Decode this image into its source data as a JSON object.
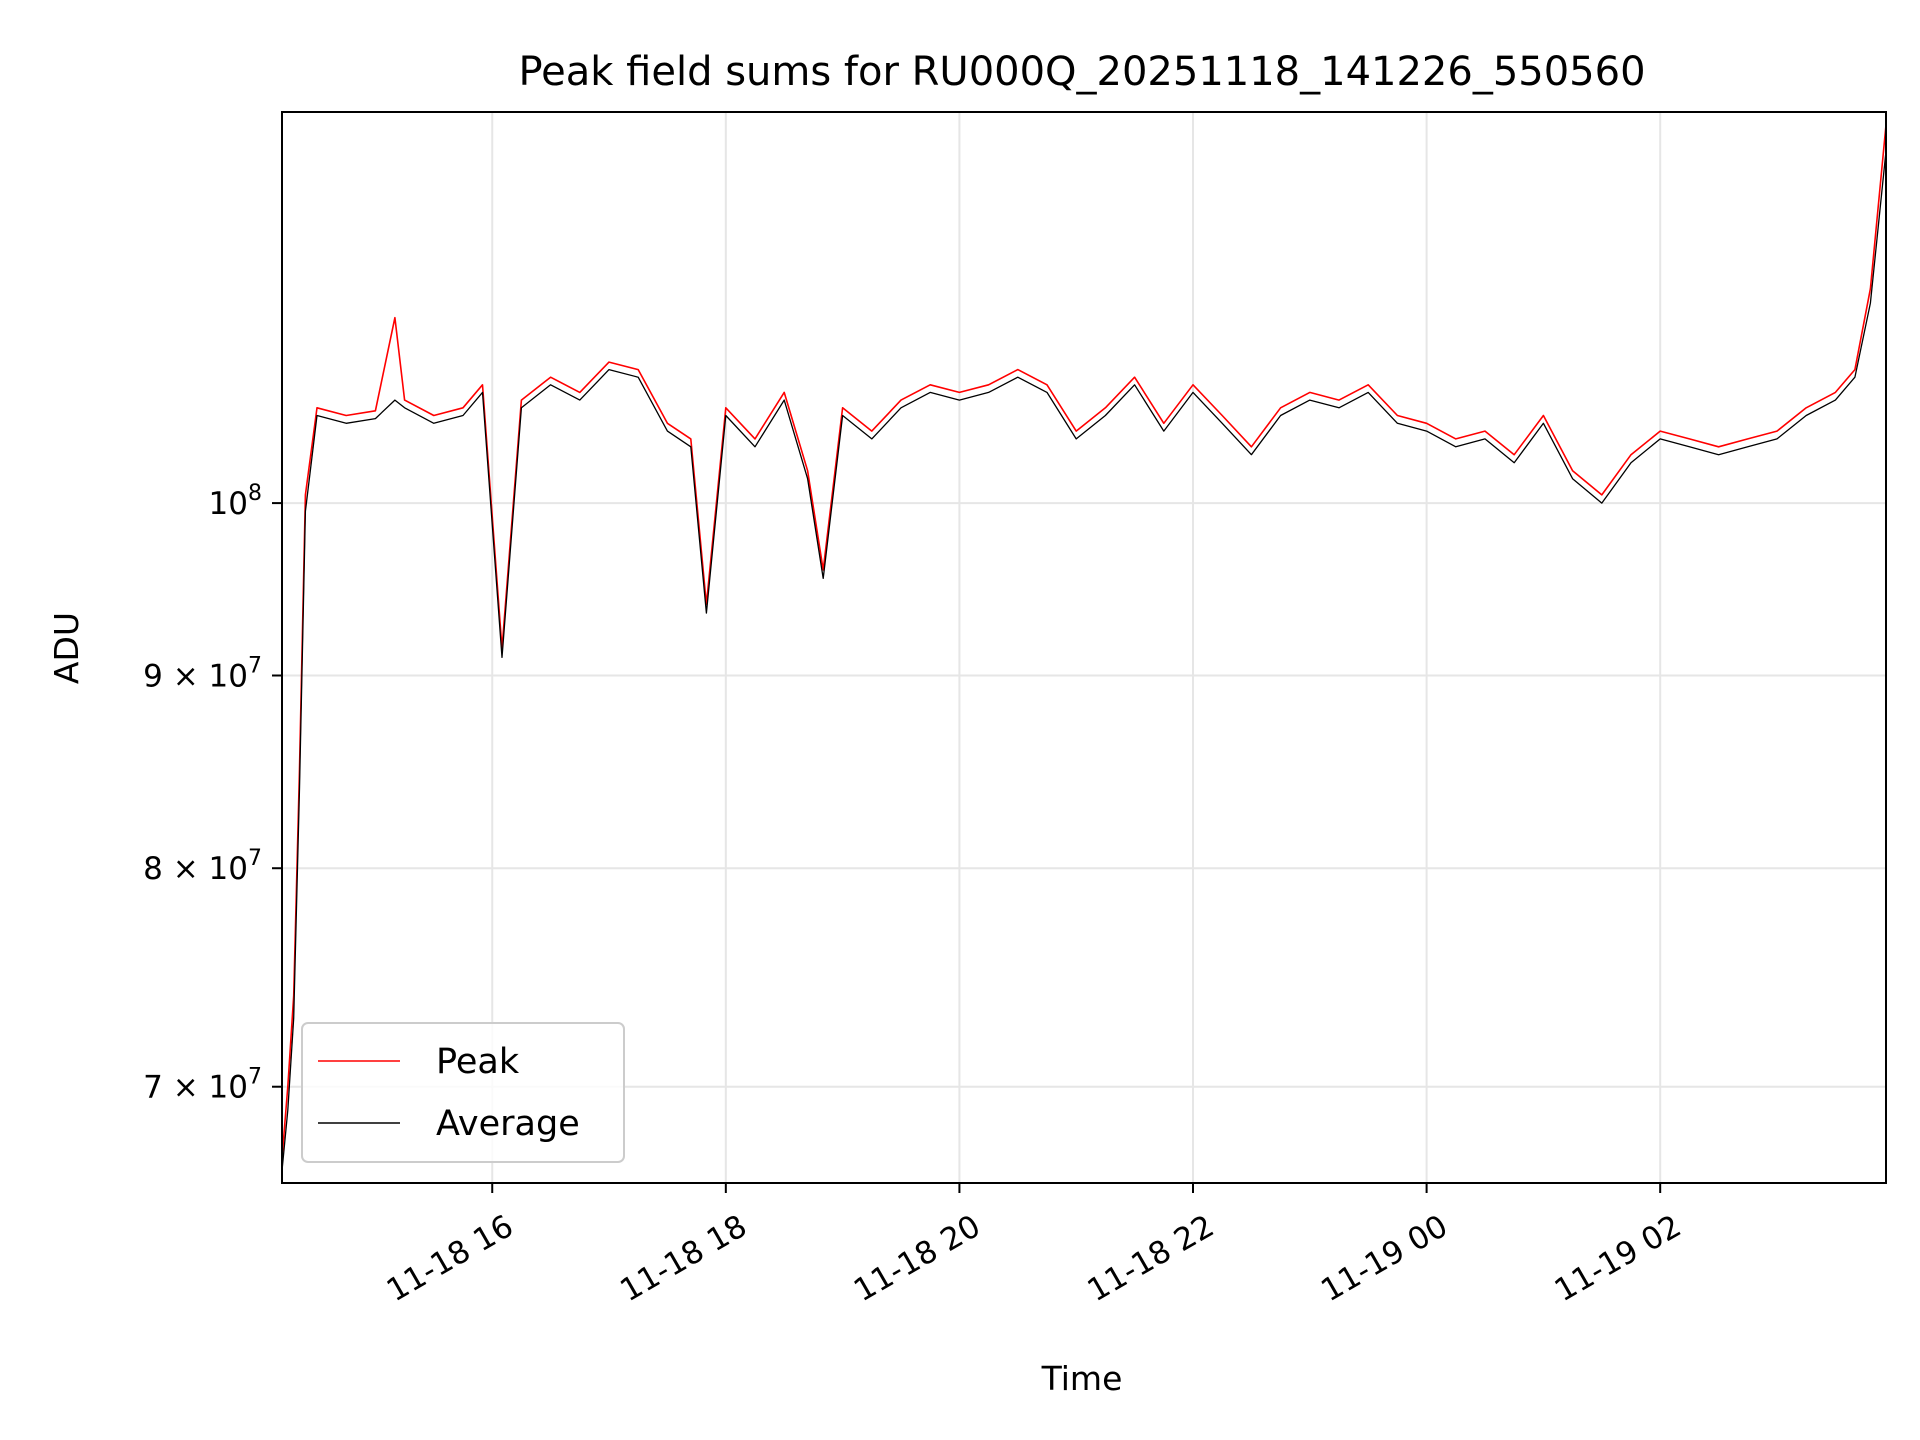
{
  "chart_data": {
    "type": "line",
    "title": "Peak field sums for RU000Q_20251118_141226_550560",
    "xlabel": "Time",
    "ylabel": "ADU",
    "y_scale": "log",
    "grid": true,
    "legend_position": "lower-left",
    "xlim": [
      "2025-11-18 14:12",
      "2025-11-19 03:56"
    ],
    "ylim": [
      66000000,
      127000000
    ],
    "x_ticks": [
      {
        "value": "2025-11-18 16:00",
        "label": "11-18 16"
      },
      {
        "value": "2025-11-18 18:00",
        "label": "11-18 18"
      },
      {
        "value": "2025-11-18 20:00",
        "label": "11-18 20"
      },
      {
        "value": "2025-11-18 22:00",
        "label": "11-18 22"
      },
      {
        "value": "2025-11-19 00:00",
        "label": "11-19 00"
      },
      {
        "value": "2025-11-19 02:00",
        "label": "11-19 02"
      }
    ],
    "y_ticks": [
      {
        "value": 100000000,
        "label": "10",
        "exp": "8"
      },
      {
        "value": 90000000,
        "label": "9 × 10",
        "exp": "7"
      },
      {
        "value": 80000000,
        "label": "8 × 10",
        "exp": "7"
      },
      {
        "value": 70000000,
        "label": "7 × 10",
        "exp": "7"
      }
    ],
    "series": [
      {
        "name": "Peak",
        "color": "#ff0000",
        "x": [
          "2025-11-18 14:12",
          "2025-11-18 14:15",
          "2025-11-18 14:18",
          "2025-11-18 14:21",
          "2025-11-18 14:24",
          "2025-11-18 14:30",
          "2025-11-18 14:45",
          "2025-11-18 15:00",
          "2025-11-18 15:10",
          "2025-11-18 15:15",
          "2025-11-18 15:30",
          "2025-11-18 15:45",
          "2025-11-18 15:55",
          "2025-11-18 16:05",
          "2025-11-18 16:15",
          "2025-11-18 16:30",
          "2025-11-18 16:45",
          "2025-11-18 17:00",
          "2025-11-18 17:15",
          "2025-11-18 17:30",
          "2025-11-18 17:42",
          "2025-11-18 17:50",
          "2025-11-18 18:00",
          "2025-11-18 18:15",
          "2025-11-18 18:30",
          "2025-11-18 18:42",
          "2025-11-18 18:50",
          "2025-11-18 19:00",
          "2025-11-18 19:15",
          "2025-11-18 19:30",
          "2025-11-18 19:45",
          "2025-11-18 20:00",
          "2025-11-18 20:15",
          "2025-11-18 20:30",
          "2025-11-18 20:45",
          "2025-11-18 21:00",
          "2025-11-18 21:15",
          "2025-11-18 21:30",
          "2025-11-18 21:45",
          "2025-11-18 22:00",
          "2025-11-18 22:15",
          "2025-11-18 22:30",
          "2025-11-18 22:45",
          "2025-11-18 23:00",
          "2025-11-18 23:15",
          "2025-11-18 23:30",
          "2025-11-18 23:45",
          "2025-11-19 00:00",
          "2025-11-19 00:15",
          "2025-11-19 00:30",
          "2025-11-19 00:45",
          "2025-11-19 01:00",
          "2025-11-19 01:15",
          "2025-11-19 01:30",
          "2025-11-19 01:45",
          "2025-11-19 02:00",
          "2025-11-19 02:15",
          "2025-11-19 02:30",
          "2025-11-19 02:45",
          "2025-11-19 03:00",
          "2025-11-19 03:15",
          "2025-11-19 03:30",
          "2025-11-19 03:40",
          "2025-11-19 03:48",
          "2025-11-19 03:56"
        ],
        "y": [
          67000000,
          70000000,
          74000000,
          85000000,
          100500000,
          106000000,
          105500000,
          105800000,
          112000000,
          106500000,
          105500000,
          106000000,
          107500000,
          91500000,
          106500000,
          108000000,
          107000000,
          109000000,
          108500000,
          105000000,
          104000000,
          94000000,
          106000000,
          104000000,
          107000000,
          102000000,
          96000000,
          106000000,
          104500000,
          106500000,
          107500000,
          107000000,
          107500000,
          108500000,
          107500000,
          104500000,
          106000000,
          108000000,
          105000000,
          107500000,
          105500000,
          103500000,
          106000000,
          107000000,
          106500000,
          107500000,
          105500000,
          105000000,
          104000000,
          104500000,
          103000000,
          105500000,
          102000000,
          100500000,
          103000000,
          104500000,
          104000000,
          103500000,
          104000000,
          104500000,
          106000000,
          107000000,
          108500000,
          114000000,
          126000000
        ]
      },
      {
        "name": "Average",
        "color": "#000000",
        "x": [
          "2025-11-18 14:12",
          "2025-11-18 14:15",
          "2025-11-18 14:18",
          "2025-11-18 14:21",
          "2025-11-18 14:24",
          "2025-11-18 14:30",
          "2025-11-18 14:45",
          "2025-11-18 15:00",
          "2025-11-18 15:10",
          "2025-11-18 15:15",
          "2025-11-18 15:30",
          "2025-11-18 15:45",
          "2025-11-18 15:55",
          "2025-11-18 16:05",
          "2025-11-18 16:15",
          "2025-11-18 16:30",
          "2025-11-18 16:45",
          "2025-11-18 17:00",
          "2025-11-18 17:15",
          "2025-11-18 17:30",
          "2025-11-18 17:42",
          "2025-11-18 17:50",
          "2025-11-18 18:00",
          "2025-11-18 18:15",
          "2025-11-18 18:30",
          "2025-11-18 18:42",
          "2025-11-18 18:50",
          "2025-11-18 19:00",
          "2025-11-18 19:15",
          "2025-11-18 19:30",
          "2025-11-18 19:45",
          "2025-11-18 20:00",
          "2025-11-18 20:15",
          "2025-11-18 20:30",
          "2025-11-18 20:45",
          "2025-11-18 21:00",
          "2025-11-18 21:15",
          "2025-11-18 21:30",
          "2025-11-18 21:45",
          "2025-11-18 22:00",
          "2025-11-18 22:15",
          "2025-11-18 22:30",
          "2025-11-18 22:45",
          "2025-11-18 23:00",
          "2025-11-18 23:15",
          "2025-11-18 23:30",
          "2025-11-18 23:45",
          "2025-11-19 00:00",
          "2025-11-19 00:15",
          "2025-11-19 00:30",
          "2025-11-19 00:45",
          "2025-11-19 01:00",
          "2025-11-19 01:15",
          "2025-11-19 01:30",
          "2025-11-19 01:45",
          "2025-11-19 02:00",
          "2025-11-19 02:15",
          "2025-11-19 02:30",
          "2025-11-19 02:45",
          "2025-11-19 03:00",
          "2025-11-19 03:15",
          "2025-11-19 03:30",
          "2025-11-19 03:40",
          "2025-11-19 03:48",
          "2025-11-19 03:56"
        ],
        "y": [
          66500000,
          69000000,
          73000000,
          84000000,
          99500000,
          105500000,
          105000000,
          105300000,
          106500000,
          106000000,
          105000000,
          105500000,
          107000000,
          91000000,
          106000000,
          107500000,
          106500000,
          108500000,
          108000000,
          104500000,
          103500000,
          93500000,
          105500000,
          103500000,
          106500000,
          101500000,
          95500000,
          105500000,
          104000000,
          106000000,
          107000000,
          106500000,
          107000000,
          108000000,
          107000000,
          104000000,
          105500000,
          107500000,
          104500000,
          107000000,
          105000000,
          103000000,
          105500000,
          106500000,
          106000000,
          107000000,
          105000000,
          104500000,
          103500000,
          104000000,
          102500000,
          105000000,
          101500000,
          100000000,
          102500000,
          104000000,
          103500000,
          103000000,
          103500000,
          104000000,
          105500000,
          106500000,
          108000000,
          113000000,
          124000000
        ]
      }
    ]
  }
}
